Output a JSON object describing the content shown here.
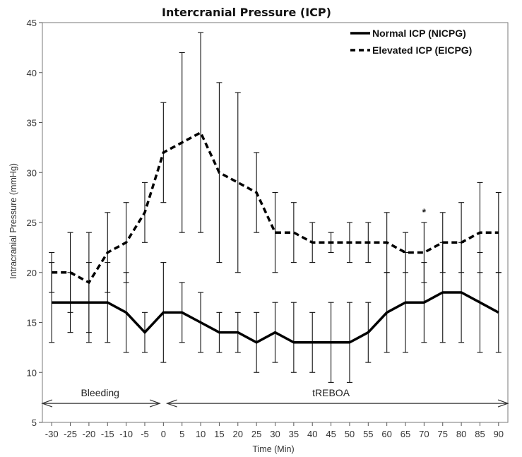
{
  "chart_data": {
    "type": "line",
    "title": "Intercranial Pressure (ICP)",
    "xlabel": "Time (Min)",
    "ylabel": "Intracranial Pressure (mmHg)",
    "x": [
      -30,
      -25,
      -20,
      -15,
      -10,
      -5,
      0,
      5,
      10,
      15,
      20,
      25,
      30,
      35,
      40,
      45,
      50,
      55,
      60,
      65,
      70,
      75,
      80,
      85,
      90
    ],
    "xlim": [
      -32.5,
      92.5
    ],
    "ylim": [
      5,
      45
    ],
    "yticks": [
      5,
      10,
      15,
      20,
      25,
      30,
      35,
      40,
      45
    ],
    "grid": false,
    "legend_position": "top-right",
    "series": [
      {
        "name": "Normal ICP (NICPG)",
        "style": "solid",
        "values": [
          17,
          17,
          17,
          17,
          16,
          14,
          16,
          16,
          15,
          14,
          14,
          13,
          14,
          13,
          13,
          13,
          13,
          14,
          16,
          17,
          17,
          18,
          18,
          17,
          16
        ],
        "err_low": [
          13,
          14,
          13,
          13,
          12,
          12,
          11,
          13,
          12,
          12,
          12,
          10,
          11,
          10,
          10,
          9,
          9,
          11,
          12,
          12,
          13,
          13,
          13,
          12,
          12
        ],
        "err_high": [
          21,
          20,
          21,
          21,
          20,
          16,
          21,
          19,
          18,
          16,
          16,
          16,
          17,
          17,
          16,
          17,
          17,
          17,
          20,
          22,
          21,
          23,
          23,
          22,
          20
        ]
      },
      {
        "name": "Elevated ICP (EICPG)",
        "style": "dashed",
        "values": [
          20,
          20,
          19,
          22,
          23,
          26,
          32,
          33,
          34,
          30,
          29,
          28,
          24,
          24,
          23,
          23,
          23,
          23,
          23,
          22,
          22,
          23,
          23,
          24,
          24
        ],
        "err_low": [
          18,
          16,
          14,
          18,
          19,
          23,
          27,
          24,
          24,
          21,
          20,
          24,
          20,
          21,
          21,
          22,
          21,
          21,
          20,
          20,
          19,
          20,
          20,
          20,
          20
        ],
        "err_high": [
          22,
          24,
          24,
          26,
          27,
          29,
          37,
          42,
          44,
          39,
          38,
          32,
          28,
          27,
          25,
          24,
          25,
          25,
          26,
          24,
          25,
          26,
          27,
          29,
          28
        ]
      }
    ],
    "annotations": [
      {
        "text": "*",
        "x": 70,
        "y": 26.4
      }
    ],
    "phases": [
      {
        "label": "Bleeding",
        "x_start": -33,
        "x_end": -31.5,
        "label_x": -17,
        "start": -32.5,
        "end": -1
      },
      {
        "label": "tREBOA",
        "start": 1,
        "end": 92.5,
        "label_x": 45
      }
    ]
  }
}
